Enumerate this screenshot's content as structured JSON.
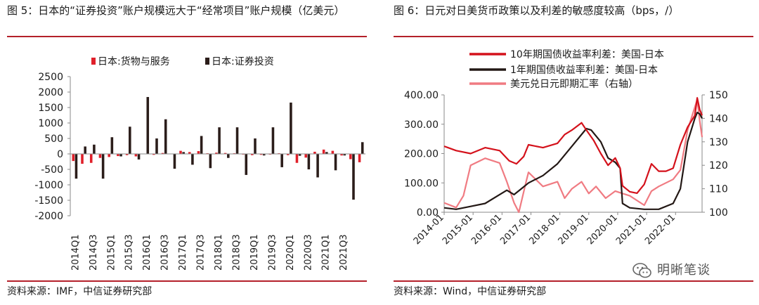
{
  "left": {
    "title": "图 5：日本的“证券投资”账户规模远大于“经常项目”账户规模（亿美元）",
    "source": "资料来源：IMF，中信证券研究部",
    "chart_data": {
      "type": "bar",
      "legend": [
        "日本:货物与服务",
        "日本:证券投资"
      ],
      "legend_position": "top",
      "ylim": [
        -2000,
        2500
      ],
      "yticks": [
        2500,
        2000,
        1500,
        1000,
        500,
        0,
        -500,
        -1000,
        -1500,
        -2000
      ],
      "xtick_labels": [
        "2014Q1",
        "2014Q3",
        "2015Q1",
        "2015Q3",
        "2016Q1",
        "2016Q3",
        "2017Q1",
        "2017Q3",
        "2018Q1",
        "2018Q3",
        "2019Q1",
        "2019Q3",
        "2020Q1",
        "2020Q3",
        "2021Q1",
        "2021Q3"
      ],
      "categories": [
        "2014Q1",
        "2014Q2",
        "2014Q3",
        "2014Q4",
        "2015Q1",
        "2015Q2",
        "2015Q3",
        "2015Q4",
        "2016Q1",
        "2016Q2",
        "2016Q3",
        "2016Q4",
        "2017Q1",
        "2017Q2",
        "2017Q3",
        "2017Q4",
        "2018Q1",
        "2018Q2",
        "2018Q3",
        "2018Q4",
        "2019Q1",
        "2019Q2",
        "2019Q3",
        "2019Q4",
        "2020Q1",
        "2020Q2",
        "2020Q3",
        "2020Q4",
        "2021Q1",
        "2021Q2",
        "2021Q3",
        "2021Q4",
        "2022Q1"
      ],
      "series": [
        {
          "name": "日本:货物与服务",
          "color": "#e0202a",
          "values": [
            -230,
            -320,
            -290,
            -130,
            -100,
            -70,
            -40,
            -80,
            10,
            -30,
            30,
            10,
            100,
            60,
            90,
            20,
            40,
            30,
            20,
            -20,
            -40,
            -30,
            -20,
            20,
            -40,
            -290,
            -120,
            70,
            140,
            100,
            -50,
            -170,
            -270
          ]
        },
        {
          "name": "日本:证券投资",
          "color": "#2b1d1a",
          "values": [
            -800,
            240,
            300,
            -800,
            540,
            -80,
            880,
            -180,
            1840,
            500,
            1120,
            -480,
            60,
            -350,
            580,
            -460,
            860,
            -130,
            860,
            -680,
            500,
            -50,
            860,
            -430,
            1660,
            -60,
            -500,
            -760,
            60,
            -530,
            -50,
            -1480,
            380
          ]
        }
      ]
    }
  },
  "right": {
    "title": "图 6：日元对日美货币政策以及利差的敏感度较高（bps，/）",
    "source": "资料来源：Wind，中信证券研究部",
    "watermark": "明晰笔谈",
    "chart_data": {
      "type": "line",
      "legend_position": "top",
      "ylim": [
        0,
        400
      ],
      "yticks": [
        "400.00",
        "300.00",
        "200.00",
        "100.00",
        "0.00"
      ],
      "y2lim": [
        100,
        150
      ],
      "y2ticks": [
        150,
        140,
        130,
        120,
        110,
        100
      ],
      "xlim": [
        "2014-01",
        "2022-12"
      ],
      "xticks": [
        "2014-01",
        "2015-01",
        "2016-01",
        "2017-01",
        "2018-01",
        "2019-01",
        "2020-01",
        "2021-01",
        "2022-01"
      ],
      "series": [
        {
          "name": "10年期国债收益率利差：美国-日本",
          "color": "#d4111b",
          "axis": "left",
          "points": [
            [
              "2014-01",
              225
            ],
            [
              "2014-06",
              210
            ],
            [
              "2014-12",
              200
            ],
            [
              "2015-06",
              220
            ],
            [
              "2015-12",
              210
            ],
            [
              "2016-04",
              175
            ],
            [
              "2016-07",
              165
            ],
            [
              "2016-10",
              190
            ],
            [
              "2016-12",
              230
            ],
            [
              "2017-06",
              220
            ],
            [
              "2017-12",
              235
            ],
            [
              "2018-03",
              265
            ],
            [
              "2018-06",
              280
            ],
            [
              "2018-10",
              305
            ],
            [
              "2018-12",
              280
            ],
            [
              "2019-03",
              245
            ],
            [
              "2019-06",
              200
            ],
            [
              "2019-09",
              160
            ],
            [
              "2019-12",
              185
            ],
            [
              "2020-02",
              150
            ],
            [
              "2020-03",
              90
            ],
            [
              "2020-06",
              70
            ],
            [
              "2020-09",
              65
            ],
            [
              "2020-12",
              95
            ],
            [
              "2021-03",
              165
            ],
            [
              "2021-06",
              140
            ],
            [
              "2021-09",
              140
            ],
            [
              "2021-12",
              150
            ],
            [
              "2022-03",
              230
            ],
            [
              "2022-06",
              290
            ],
            [
              "2022-09",
              330
            ],
            [
              "2022-10",
              390
            ],
            [
              "2022-11",
              350
            ],
            [
              "2022-12",
              330
            ]
          ]
        },
        {
          "name": "1年期国债收益率利差：美国-日本",
          "color": "#231815",
          "axis": "left",
          "points": [
            [
              "2014-01",
              15
            ],
            [
              "2014-06",
              10
            ],
            [
              "2014-12",
              20
            ],
            [
              "2015-06",
              30
            ],
            [
              "2015-12",
              60
            ],
            [
              "2016-03",
              75
            ],
            [
              "2016-06",
              60
            ],
            [
              "2016-09",
              80
            ],
            [
              "2016-12",
              100
            ],
            [
              "2017-06",
              125
            ],
            [
              "2017-12",
              165
            ],
            [
              "2018-06",
              225
            ],
            [
              "2018-12",
              285
            ],
            [
              "2019-02",
              280
            ],
            [
              "2019-06",
              240
            ],
            [
              "2019-09",
              185
            ],
            [
              "2019-12",
              170
            ],
            [
              "2020-02",
              150
            ],
            [
              "2020-03",
              30
            ],
            [
              "2020-06",
              15
            ],
            [
              "2020-12",
              10
            ],
            [
              "2021-06",
              10
            ],
            [
              "2021-12",
              30
            ],
            [
              "2022-03",
              80
            ],
            [
              "2022-06",
              240
            ],
            [
              "2022-09",
              320
            ],
            [
              "2022-10",
              340
            ],
            [
              "2022-11",
              335
            ],
            [
              "2022-12",
              320
            ]
          ]
        },
        {
          "name": "美元兑日元即期汇率（右轴）",
          "color": "#f07b82",
          "axis": "right",
          "points": [
            [
              "2014-01",
              104
            ],
            [
              "2014-06",
              102
            ],
            [
              "2014-09",
              107
            ],
            [
              "2014-12",
              120
            ],
            [
              "2015-06",
              123
            ],
            [
              "2015-12",
              121
            ],
            [
              "2016-03",
              113
            ],
            [
              "2016-06",
              104
            ],
            [
              "2016-08",
              100
            ],
            [
              "2016-11",
              113
            ],
            [
              "2016-12",
              117
            ],
            [
              "2017-06",
              111
            ],
            [
              "2017-09",
              112
            ],
            [
              "2017-12",
              113
            ],
            [
              "2018-03",
              106
            ],
            [
              "2018-06",
              110
            ],
            [
              "2018-10",
              113
            ],
            [
              "2019-01",
              108
            ],
            [
              "2019-04",
              111
            ],
            [
              "2019-08",
              106
            ],
            [
              "2019-12",
              109
            ],
            [
              "2020-03",
              108
            ],
            [
              "2020-06",
              107
            ],
            [
              "2020-12",
              103
            ],
            [
              "2021-03",
              109
            ],
            [
              "2021-06",
              111
            ],
            [
              "2021-12",
              114
            ],
            [
              "2022-03",
              118
            ],
            [
              "2022-06",
              135
            ],
            [
              "2022-10",
              148
            ],
            [
              "2022-11",
              139
            ],
            [
              "2022-12",
              132
            ]
          ]
        }
      ]
    }
  }
}
